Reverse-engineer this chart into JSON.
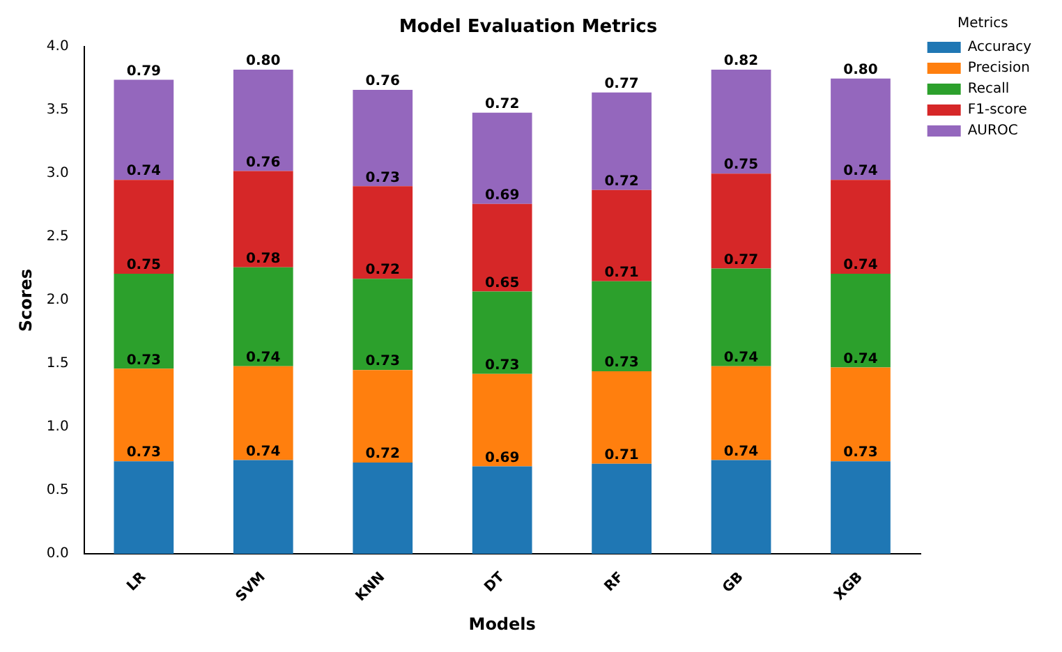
{
  "chart_data": {
    "type": "bar",
    "title": "Model Evaluation Metrics",
    "xlabel": "Models",
    "ylabel": "Scores",
    "legend_title": "Metrics",
    "categories": [
      "LR",
      "SVM",
      "KNN",
      "DT",
      "RF",
      "GB",
      "XGB"
    ],
    "stacked": true,
    "legend": "top right",
    "grid": false,
    "ylim": [
      0,
      4
    ],
    "yticks": [
      {
        "value": 0,
        "label": "0.0"
      },
      {
        "value": 0.5,
        "label": "0.5"
      },
      {
        "value": 1,
        "label": "1.0"
      },
      {
        "value": 1.5,
        "label": "1.5"
      },
      {
        "value": 2,
        "label": "2.0"
      },
      {
        "value": 2.5,
        "label": "2.5"
      },
      {
        "value": 3,
        "label": "3.0"
      },
      {
        "value": 3.5,
        "label": "3.5"
      },
      {
        "value": 4,
        "label": "4.0"
      }
    ],
    "series": [
      {
        "name": "Accuracy",
        "color": "#1f77b4",
        "values": [
          0.73,
          0.74,
          0.72,
          0.69,
          0.71,
          0.74,
          0.73
        ],
        "value_labels": [
          "0.73",
          "0.74",
          "0.72",
          "0.69",
          "0.71",
          "0.74",
          "0.73"
        ]
      },
      {
        "name": "Precision",
        "color": "#ff7f0e",
        "values": [
          0.73,
          0.74,
          0.73,
          0.73,
          0.73,
          0.74,
          0.74
        ],
        "value_labels": [
          "0.73",
          "0.74",
          "0.73",
          "0.73",
          "0.73",
          "0.74",
          "0.74"
        ]
      },
      {
        "name": "Recall",
        "color": "#2ca02c",
        "values": [
          0.75,
          0.78,
          0.72,
          0.65,
          0.71,
          0.77,
          0.74
        ],
        "value_labels": [
          "0.75",
          "0.78",
          "0.72",
          "0.65",
          "0.71",
          "0.77",
          "0.74"
        ]
      },
      {
        "name": "F1-score",
        "color": "#d62728",
        "values": [
          0.74,
          0.76,
          0.73,
          0.69,
          0.72,
          0.75,
          0.74
        ],
        "value_labels": [
          "0.74",
          "0.76",
          "0.73",
          "0.69",
          "0.72",
          "0.75",
          "0.74"
        ]
      },
      {
        "name": "AUROC",
        "color": "#9467bd",
        "values": [
          0.79,
          0.8,
          0.76,
          0.72,
          0.77,
          0.82,
          0.8
        ],
        "value_labels": [
          "0.79",
          "0.80",
          "0.76",
          "0.72",
          "0.77",
          "0.82",
          "0.80"
        ]
      }
    ]
  }
}
